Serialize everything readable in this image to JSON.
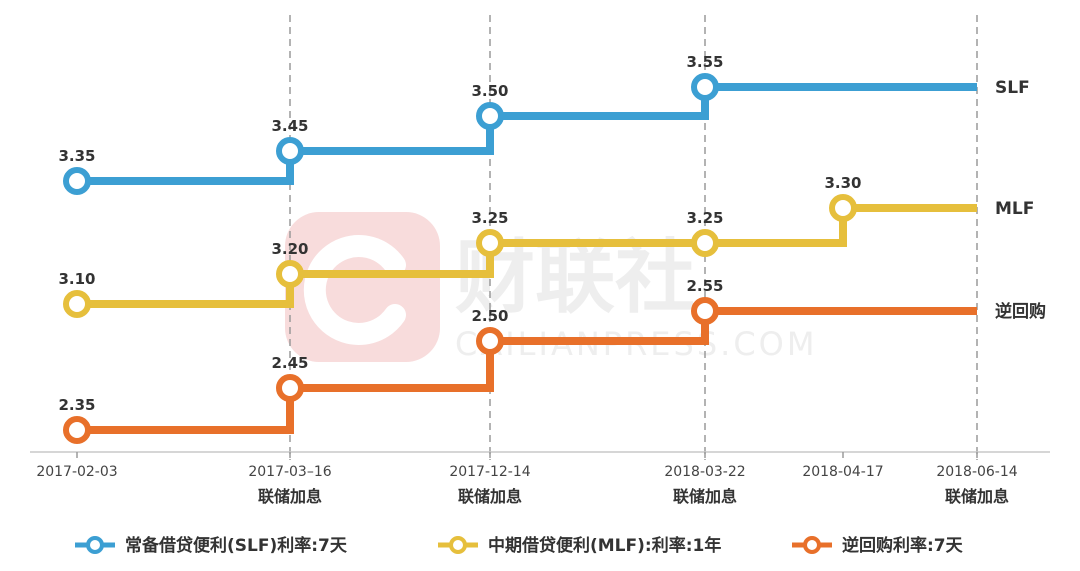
{
  "chart_data": {
    "type": "line",
    "step": true,
    "x_dates": [
      "2017-02-03",
      "2017-03-16",
      "2017-12-14",
      "2018-03-22",
      "2018-04-17",
      "2018-06-14"
    ],
    "tick_labels": [
      "2017-02-03",
      "2017-03–16",
      "2017-12-14",
      "2018-03-22",
      "2018-04-17",
      "2018-06-14"
    ],
    "event_labels": [
      {
        "date": "2017-03-16",
        "label": "联储加息"
      },
      {
        "date": "2017-12-14",
        "label": "联储加息"
      },
      {
        "date": "2018-03-22",
        "label": "联储加息"
      },
      {
        "date": "2018-06-14",
        "label": "联储加息"
      }
    ],
    "series": [
      {
        "name": "常备借贷便利(SLF)利率:7天",
        "end_label": "SLF",
        "color": "#3c9fd3",
        "points": [
          {
            "x": "2017-02-03",
            "y": 3.35
          },
          {
            "x": "2017-03-16",
            "y": 3.45
          },
          {
            "x": "2017-12-14",
            "y": 3.5
          },
          {
            "x": "2018-03-22",
            "y": 3.55
          },
          {
            "x": "2018-06-14",
            "y": 3.55
          }
        ]
      },
      {
        "name": "中期借贷便利(MLF):利率:1年",
        "end_label": "MLF",
        "color": "#e6bf3c",
        "points": [
          {
            "x": "2017-02-03",
            "y": 3.1
          },
          {
            "x": "2017-03-16",
            "y": 3.2
          },
          {
            "x": "2017-12-14",
            "y": 3.25
          },
          {
            "x": "2018-03-22",
            "y": 3.25
          },
          {
            "x": "2018-04-17",
            "y": 3.3
          },
          {
            "x": "2018-06-14",
            "y": 3.3
          }
        ]
      },
      {
        "name": "逆回购利率:7天",
        "end_label": "逆回购",
        "color": "#e8702a",
        "points": [
          {
            "x": "2017-02-03",
            "y": 2.35
          },
          {
            "x": "2017-03-16",
            "y": 2.45
          },
          {
            "x": "2017-12-14",
            "y": 2.5
          },
          {
            "x": "2018-03-22",
            "y": 2.55
          },
          {
            "x": "2018-06-14",
            "y": 2.55
          }
        ]
      }
    ],
    "point_labels": [
      {
        "series": 0,
        "x": "2017-02-03",
        "text": "3.35"
      },
      {
        "series": 0,
        "x": "2017-03-16",
        "text": "3.45"
      },
      {
        "series": 0,
        "x": "2017-12-14",
        "text": "3.50"
      },
      {
        "series": 0,
        "x": "2018-03-22",
        "text": "3.55"
      },
      {
        "series": 1,
        "x": "2017-02-03",
        "text": "3.10"
      },
      {
        "series": 1,
        "x": "2017-03-16",
        "text": "3.20"
      },
      {
        "series": 1,
        "x": "2017-12-14",
        "text": "3.25"
      },
      {
        "series": 1,
        "x": "2018-03-22",
        "text": "3.25"
      },
      {
        "series": 1,
        "x": "2018-04-17",
        "text": "3.30"
      },
      {
        "series": 2,
        "x": "2017-02-03",
        "text": "2.35"
      },
      {
        "series": 2,
        "x": "2017-03-16",
        "text": "2.45"
      },
      {
        "series": 2,
        "x": "2017-12-14",
        "text": "2.50"
      },
      {
        "series": 2,
        "x": "2018-03-22",
        "text": "2.55"
      }
    ],
    "legend_position": "bottom",
    "grid": false,
    "vertical_dashed_lines_at": [
      "2017-03-16",
      "2017-12-14",
      "2018-03-22",
      "2018-06-14"
    ]
  },
  "watermark": {
    "logo_text": "财联社",
    "sub_text": "CAILIANPRESS.COM"
  }
}
